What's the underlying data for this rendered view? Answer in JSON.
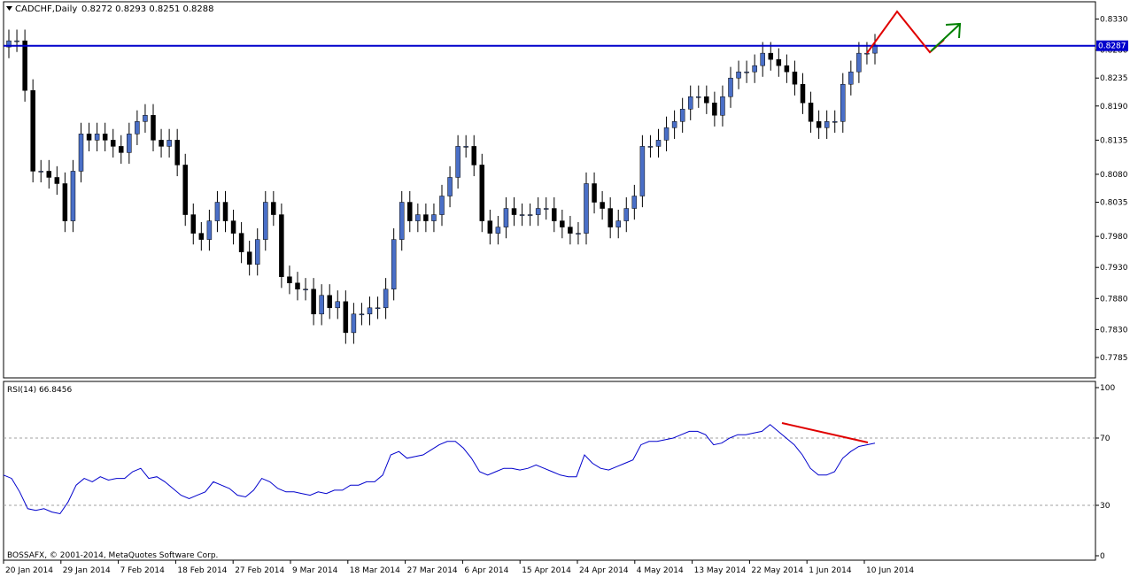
{
  "header": {
    "symbol_tf": "CADCHF,Daily",
    "ohlc": "0.8272 0.8293 0.8251 0.8288"
  },
  "colors": {
    "bull_candle": "#4a6fc7",
    "bear_candle": "#000000",
    "hline": "#0000cc",
    "rsi_line": "#0000cc",
    "trend_red": "#e00000",
    "trend_green": "#008000",
    "label_bg": "#0000cc"
  },
  "chart_data": [
    {
      "type": "candlestick",
      "title": "CADCHF,Daily",
      "ylim": [
        0.7755,
        0.8355
      ],
      "y_ticks": [
        "0.8330",
        "0.8280",
        "0.8235",
        "0.8190",
        "0.8135",
        "0.8080",
        "0.8035",
        "0.7980",
        "0.7930",
        "0.7880",
        "0.7830",
        "0.7785"
      ],
      "x_tick_labels": [
        "20 Jan 2014",
        "29 Jan 2014",
        "7 Feb 2014",
        "18 Feb 2014",
        "27 Feb 2014",
        "9 Mar 2014",
        "18 Mar 2014",
        "27 Mar 2014",
        "6 Apr 2014",
        "15 Apr 2014",
        "24 Apr 2014",
        "4 May 2014",
        "13 May 2014",
        "22 May 2014",
        "1 Jun 2014",
        "10 Jun 2014"
      ],
      "horizontal_line": {
        "value": 0.8287,
        "label": "0.8287"
      },
      "closes": [
        0.8295,
        0.8295,
        0.8215,
        0.8085,
        0.8085,
        0.8075,
        0.8065,
        0.8005,
        0.8085,
        0.8145,
        0.8135,
        0.8145,
        0.8135,
        0.8125,
        0.8115,
        0.8145,
        0.8165,
        0.8175,
        0.8135,
        0.8125,
        0.8135,
        0.8095,
        0.8015,
        0.7985,
        0.7975,
        0.8005,
        0.8035,
        0.8005,
        0.7985,
        0.7955,
        0.7935,
        0.7975,
        0.8035,
        0.8015,
        0.7915,
        0.7905,
        0.7895,
        0.7895,
        0.7855,
        0.7885,
        0.7865,
        0.7875,
        0.7825,
        0.7855,
        0.7855,
        0.7865,
        0.7865,
        0.7895,
        0.7975,
        0.8035,
        0.8005,
        0.8015,
        0.8005,
        0.8015,
        0.8045,
        0.8075,
        0.8125,
        0.8125,
        0.8095,
        0.8005,
        0.7985,
        0.7995,
        0.8025,
        0.8015,
        0.8015,
        0.8015,
        0.8025,
        0.8025,
        0.8005,
        0.7995,
        0.7985,
        0.7985,
        0.8065,
        0.8035,
        0.8025,
        0.7995,
        0.8005,
        0.8025,
        0.8045,
        0.8125,
        0.8125,
        0.8135,
        0.8155,
        0.8165,
        0.8185,
        0.8205,
        0.8205,
        0.8195,
        0.8175,
        0.8205,
        0.8235,
        0.8245,
        0.8245,
        0.8255,
        0.8275,
        0.8265,
        0.8255,
        0.8245,
        0.8225,
        0.8195,
        0.8165,
        0.8155,
        0.8165,
        0.8165,
        0.8225,
        0.8245,
        0.8275,
        0.8275,
        0.8288
      ],
      "candle_note": "bars drawn from closes; bull = close above previous close"
    },
    {
      "type": "line",
      "title": "RSI(14) 66.8456",
      "ylim": [
        0,
        100
      ],
      "y_ticks": [
        "100",
        "70",
        "30",
        "0"
      ],
      "levels": [
        70,
        30
      ],
      "values": [
        48,
        46,
        38,
        28,
        27,
        28,
        26,
        25,
        32,
        42,
        46,
        44,
        47,
        45,
        46,
        46,
        50,
        52,
        46,
        47,
        44,
        40,
        36,
        34,
        36,
        38,
        44,
        42,
        40,
        36,
        35,
        39,
        46,
        44,
        40,
        38,
        38,
        37,
        36,
        38,
        37,
        39,
        39,
        42,
        42,
        44,
        44,
        48,
        60,
        62,
        58,
        59,
        60,
        63,
        66,
        68,
        68,
        64,
        58,
        50,
        48,
        50,
        52,
        52,
        51,
        52,
        54,
        52,
        50,
        48,
        47,
        47,
        60,
        55,
        52,
        51,
        53,
        55,
        57,
        66,
        68,
        68,
        69,
        70,
        72,
        74,
        74,
        72,
        66,
        67,
        70,
        72,
        72,
        73,
        74,
        78,
        74,
        70,
        66,
        60,
        52,
        48,
        48,
        50,
        58,
        62,
        65,
        66,
        67
      ]
    }
  ],
  "footer": {
    "copyright": "BOSSAFX, © 2001-2014, MetaQuotes Software Corp."
  }
}
